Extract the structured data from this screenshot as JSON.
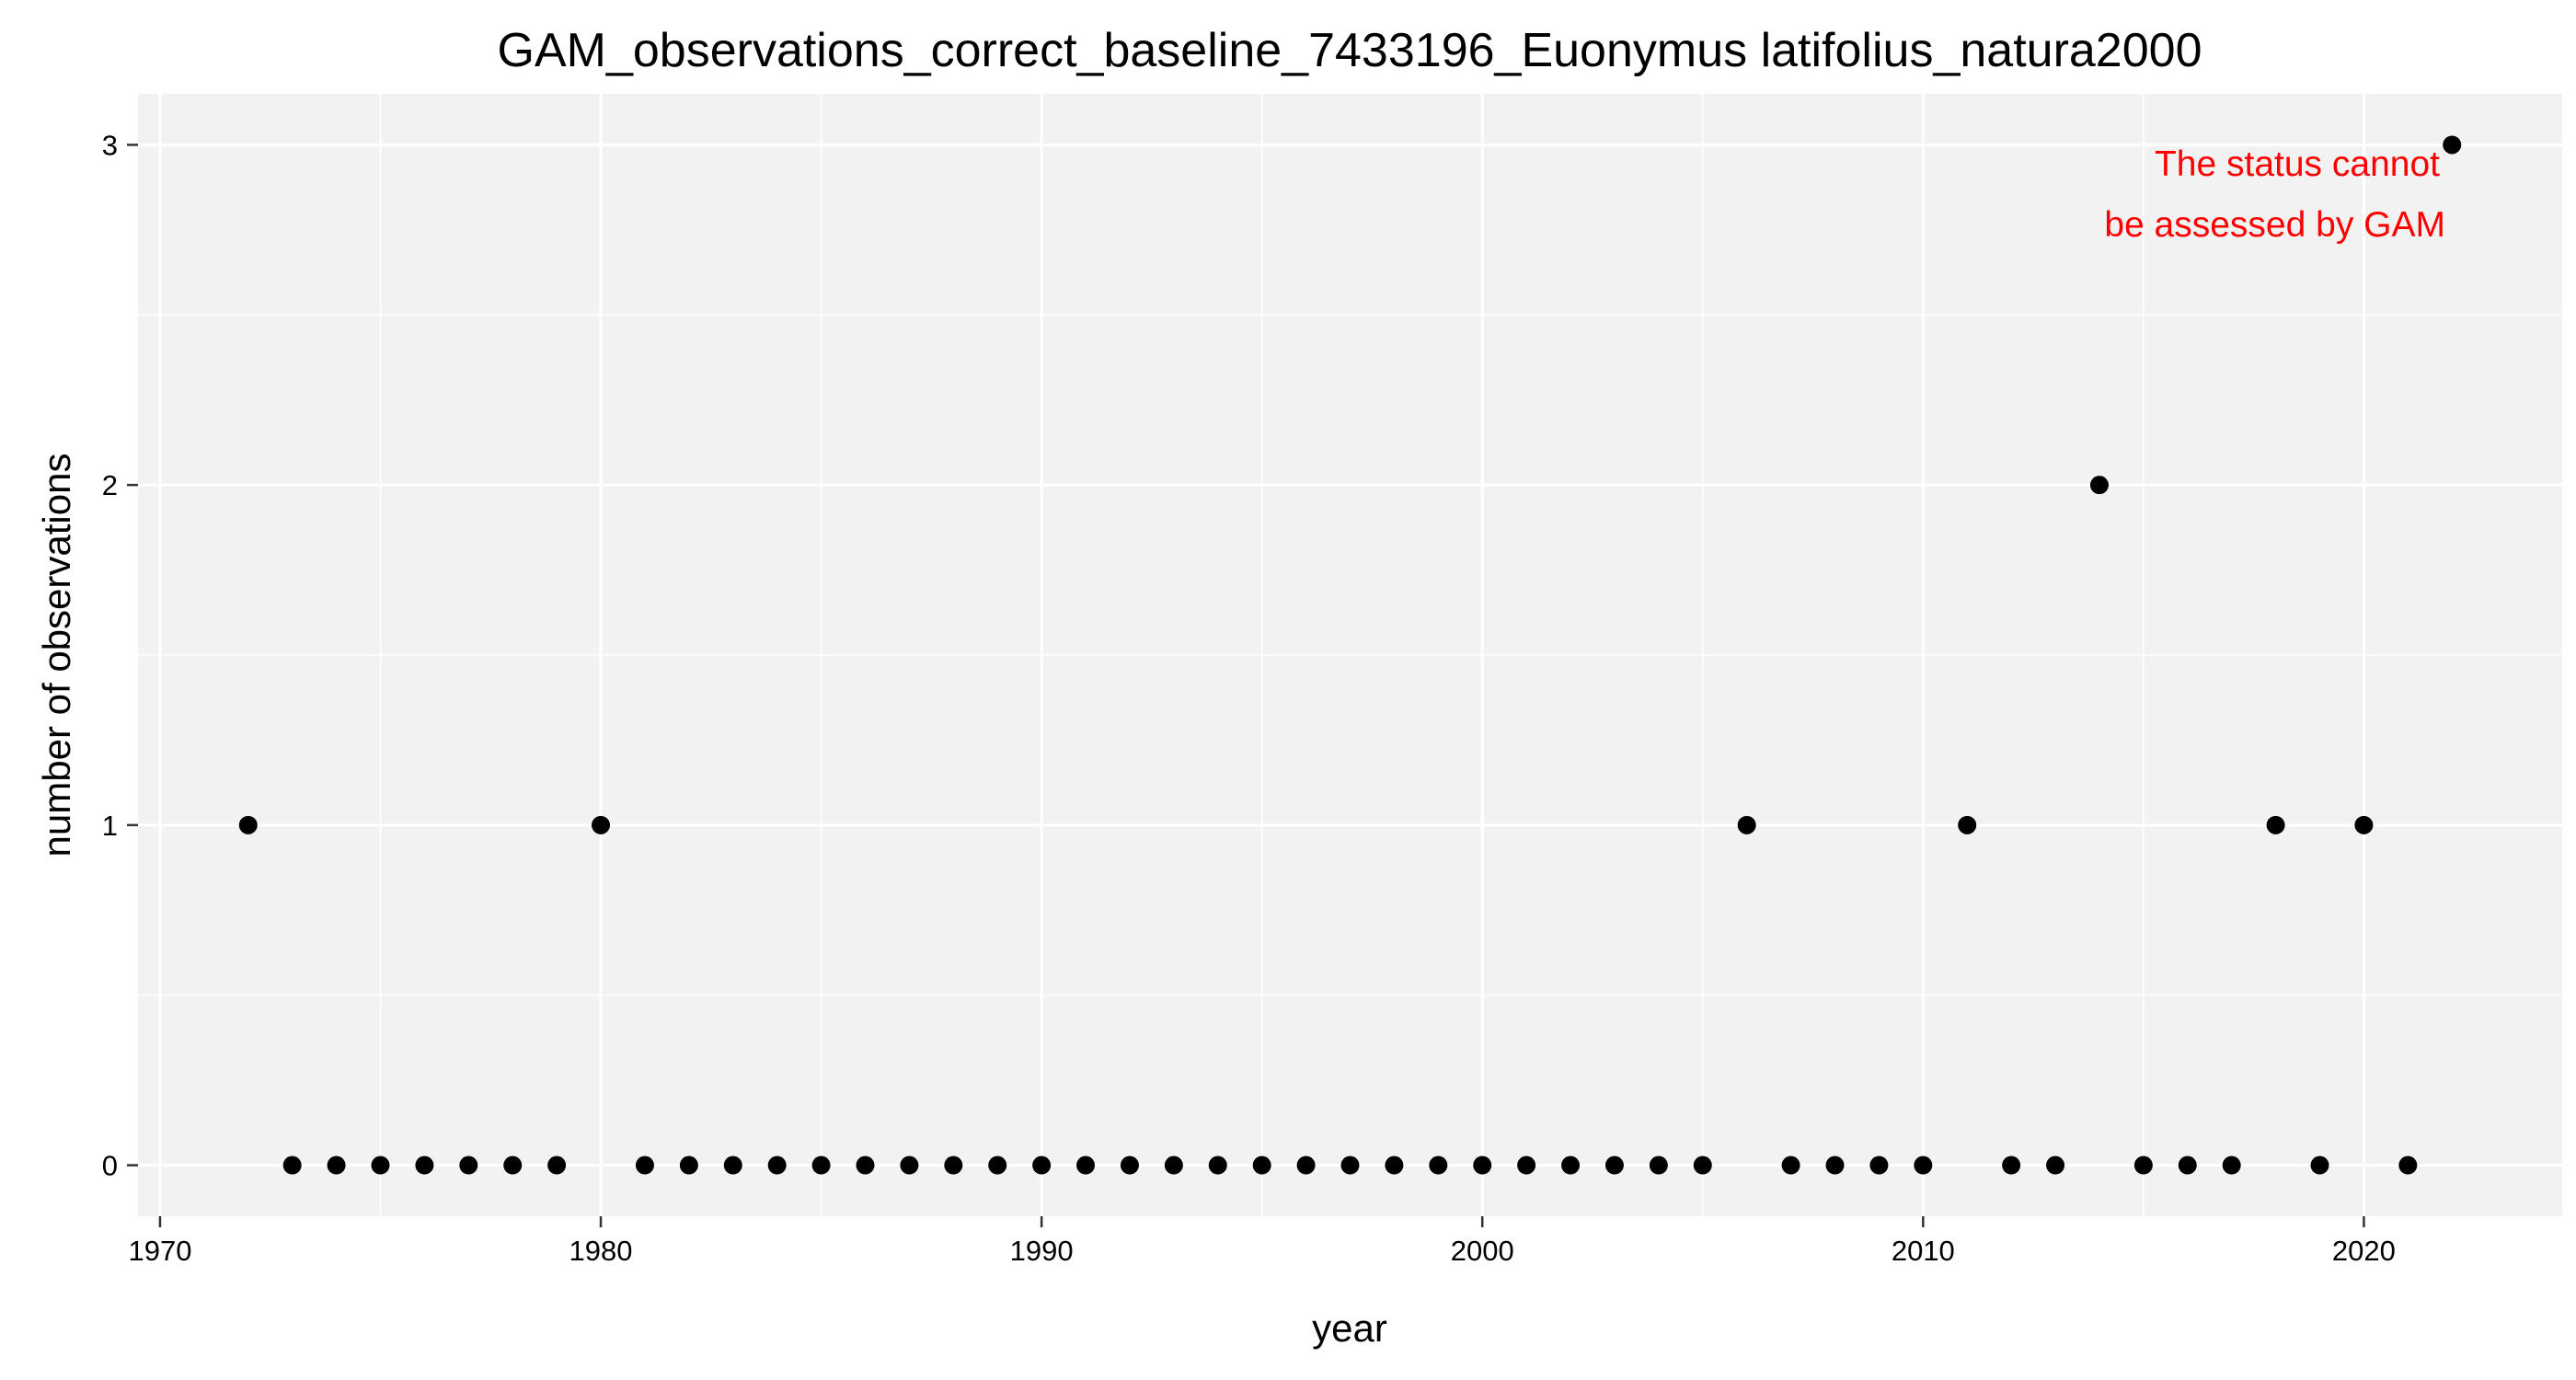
{
  "chart_data": {
    "type": "scatter",
    "title": "GAM_observations_correct_baseline_7433196_Euonymus latifolius_natura2000",
    "xlabel": "year",
    "ylabel": "number of observations",
    "xlim": [
      1969.5,
      2024.5
    ],
    "ylim": [
      -0.15,
      3.15
    ],
    "xticks": [
      1970,
      1980,
      1990,
      2000,
      2010,
      2020
    ],
    "yticks": [
      0,
      1,
      2,
      3
    ],
    "grid": true,
    "annotation": [
      "The status cannot",
      "be assessed by GAM"
    ],
    "colors": {
      "panel": "#f2f2f2",
      "grid": "#ffffff",
      "points": "#000000",
      "annotation": "#ff0000"
    },
    "points": [
      {
        "x": 1972,
        "y": 1
      },
      {
        "x": 1973,
        "y": 0
      },
      {
        "x": 1974,
        "y": 0
      },
      {
        "x": 1975,
        "y": 0
      },
      {
        "x": 1976,
        "y": 0
      },
      {
        "x": 1977,
        "y": 0
      },
      {
        "x": 1978,
        "y": 0
      },
      {
        "x": 1979,
        "y": 0
      },
      {
        "x": 1980,
        "y": 1
      },
      {
        "x": 1981,
        "y": 0
      },
      {
        "x": 1982,
        "y": 0
      },
      {
        "x": 1983,
        "y": 0
      },
      {
        "x": 1984,
        "y": 0
      },
      {
        "x": 1985,
        "y": 0
      },
      {
        "x": 1986,
        "y": 0
      },
      {
        "x": 1987,
        "y": 0
      },
      {
        "x": 1988,
        "y": 0
      },
      {
        "x": 1989,
        "y": 0
      },
      {
        "x": 1990,
        "y": 0
      },
      {
        "x": 1991,
        "y": 0
      },
      {
        "x": 1992,
        "y": 0
      },
      {
        "x": 1993,
        "y": 0
      },
      {
        "x": 1994,
        "y": 0
      },
      {
        "x": 1995,
        "y": 0
      },
      {
        "x": 1996,
        "y": 0
      },
      {
        "x": 1997,
        "y": 0
      },
      {
        "x": 1998,
        "y": 0
      },
      {
        "x": 1999,
        "y": 0
      },
      {
        "x": 2000,
        "y": 0
      },
      {
        "x": 2001,
        "y": 0
      },
      {
        "x": 2002,
        "y": 0
      },
      {
        "x": 2003,
        "y": 0
      },
      {
        "x": 2004,
        "y": 0
      },
      {
        "x": 2005,
        "y": 0
      },
      {
        "x": 2006,
        "y": 1
      },
      {
        "x": 2007,
        "y": 0
      },
      {
        "x": 2008,
        "y": 0
      },
      {
        "x": 2009,
        "y": 0
      },
      {
        "x": 2010,
        "y": 0
      },
      {
        "x": 2011,
        "y": 1
      },
      {
        "x": 2012,
        "y": 0
      },
      {
        "x": 2013,
        "y": 0
      },
      {
        "x": 2014,
        "y": 2
      },
      {
        "x": 2015,
        "y": 0
      },
      {
        "x": 2016,
        "y": 0
      },
      {
        "x": 2017,
        "y": 0
      },
      {
        "x": 2018,
        "y": 1
      },
      {
        "x": 2019,
        "y": 0
      },
      {
        "x": 2020,
        "y": 1
      },
      {
        "x": 2021,
        "y": 0
      },
      {
        "x": 2022,
        "y": 3
      }
    ]
  }
}
